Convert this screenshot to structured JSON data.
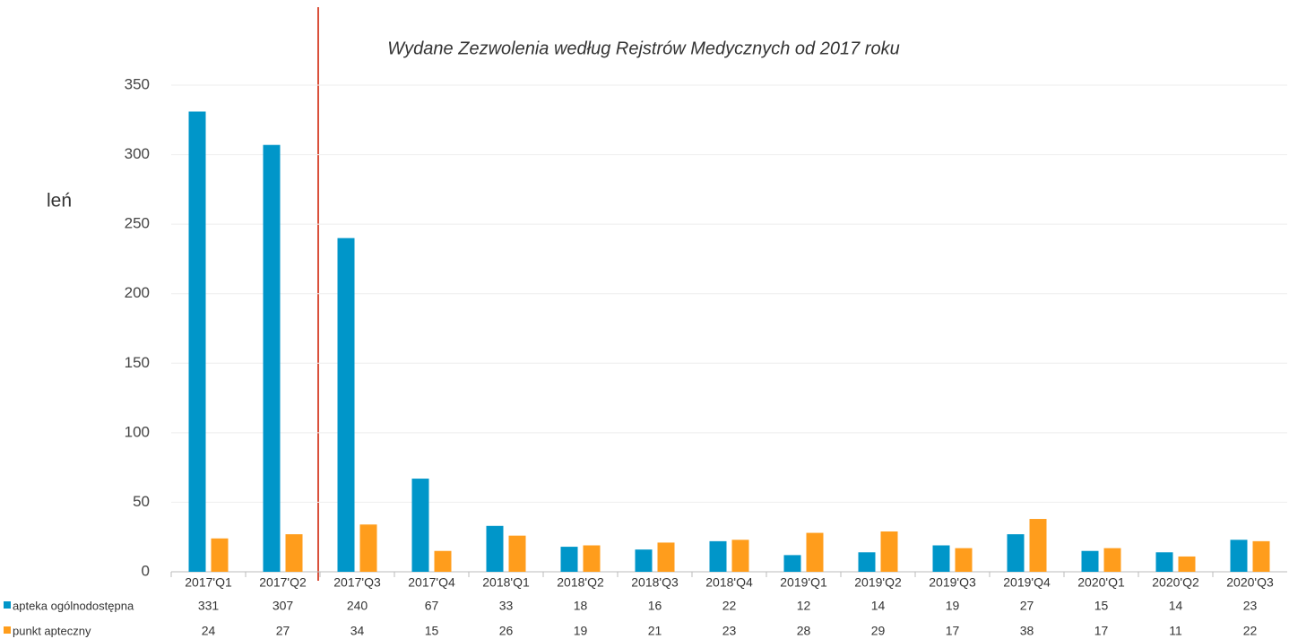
{
  "chart_data": {
    "type": "bar",
    "title": "Wydane Zezwolenia według Rejstrów Medycznych od 2017 roku",
    "y_label": "leń",
    "categories": [
      "2017'Q1",
      "2017'Q2",
      "2017'Q3",
      "2017'Q4",
      "2018'Q1",
      "2018'Q2",
      "2018'Q3",
      "2018'Q4",
      "2019'Q1",
      "2019'Q2",
      "2019'Q3",
      "2019'Q4",
      "2020'Q1",
      "2020'Q2",
      "2020'Q3"
    ],
    "series": [
      {
        "name": "apteka ogólnodostępna",
        "color": "#0096c9",
        "values": [
          331,
          307,
          240,
          67,
          33,
          18,
          16,
          22,
          12,
          14,
          19,
          27,
          15,
          14,
          23
        ]
      },
      {
        "name": "punkt apteczny",
        "color": "#ff9d1c",
        "values": [
          24,
          27,
          34,
          15,
          26,
          19,
          21,
          23,
          28,
          29,
          17,
          38,
          17,
          11,
          22
        ]
      }
    ],
    "ylim": [
      0,
      350
    ],
    "yticks": [
      0,
      50,
      100,
      150,
      200,
      250,
      300,
      350
    ],
    "grid": true,
    "data_table": true
  }
}
